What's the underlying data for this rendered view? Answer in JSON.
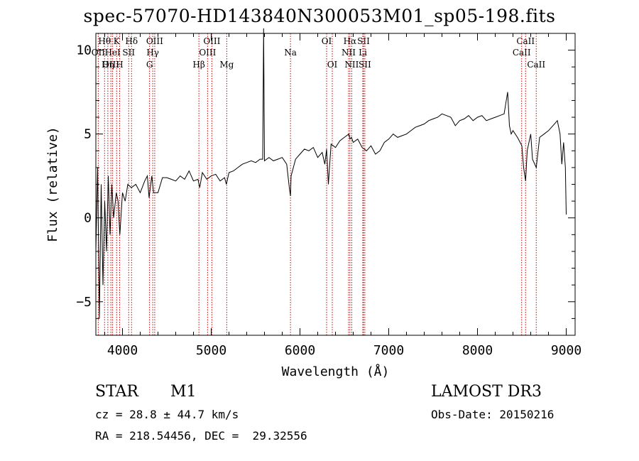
{
  "chart_data": {
    "type": "line",
    "title": "spec-57070-HD143840N300053M01_sp05-198.fits",
    "xlabel": "Wavelength (Å)",
    "ylabel": "Flux (relative)",
    "xlim": [
      3700,
      9100
    ],
    "ylim": [
      -7,
      11
    ],
    "xticks": [
      4000,
      5000,
      6000,
      7000,
      8000,
      9000
    ],
    "xtick_labels": [
      "4000",
      "5000",
      "6000",
      "7000",
      "8000",
      "9000"
    ],
    "yticks": [
      -5,
      0,
      5,
      10
    ],
    "ytick_labels": [
      "−5",
      "0",
      "5",
      "10"
    ],
    "series": [
      {
        "name": "spectrum",
        "x": [
          3700,
          3720,
          3740,
          3760,
          3780,
          3800,
          3820,
          3840,
          3860,
          3880,
          3900,
          3930,
          3950,
          3970,
          4000,
          4030,
          4060,
          4100,
          4150,
          4200,
          4250,
          4280,
          4300,
          4330,
          4350,
          4400,
          4450,
          4500,
          4550,
          4600,
          4650,
          4700,
          4750,
          4800,
          4850,
          4870,
          4900,
          4950,
          5000,
          5050,
          5100,
          5150,
          5170,
          5200,
          5250,
          5300,
          5350,
          5400,
          5450,
          5500,
          5550,
          5580,
          5590,
          5600,
          5650,
          5700,
          5750,
          5800,
          5850,
          5880,
          5893,
          5900,
          5950,
          6000,
          6050,
          6100,
          6150,
          6200,
          6250,
          6280,
          6300,
          6320,
          6350,
          6400,
          6450,
          6500,
          6550,
          6563,
          6580,
          6600,
          6650,
          6700,
          6750,
          6800,
          6850,
          6900,
          6950,
          7000,
          7050,
          7100,
          7150,
          7200,
          7250,
          7300,
          7350,
          7400,
          7450,
          7500,
          7550,
          7600,
          7650,
          7700,
          7750,
          7800,
          7850,
          7900,
          7950,
          8000,
          8050,
          8100,
          8150,
          8200,
          8250,
          8300,
          8340,
          8360,
          8380,
          8400,
          8450,
          8500,
          8520,
          8542,
          8560,
          8600,
          8620,
          8662,
          8700,
          8750,
          8800,
          8850,
          8900,
          8930,
          8950,
          8970,
          8990,
          9000
        ],
        "y": [
          -2,
          3,
          -6,
          2,
          -4,
          1,
          -2,
          2.5,
          -1,
          2,
          0,
          1.5,
          1,
          -1,
          1.5,
          1,
          2,
          1.8,
          2,
          1.5,
          2.2,
          2.5,
          1.2,
          2.5,
          1.5,
          1.5,
          2.4,
          2.4,
          2.3,
          2.2,
          2.5,
          2.3,
          2.8,
          2.2,
          2.3,
          1.8,
          2.7,
          2.3,
          2.5,
          2.6,
          2.2,
          2.4,
          2.0,
          2.7,
          2.8,
          3.0,
          3.2,
          3.3,
          3.4,
          3.3,
          3.5,
          3.5,
          11.3,
          3.4,
          3.6,
          3.4,
          3.5,
          3.6,
          3.2,
          1.8,
          1.3,
          2.5,
          3.5,
          3.8,
          4.1,
          4.0,
          4.2,
          3.6,
          3.9,
          3.2,
          4.1,
          2.0,
          4.4,
          4.2,
          4.6,
          4.8,
          5.0,
          4.7,
          4.8,
          4.5,
          4.7,
          4.2,
          4.0,
          4.3,
          3.8,
          4.0,
          4.5,
          4.7,
          5.0,
          4.8,
          4.9,
          5.0,
          5.2,
          5.4,
          5.5,
          5.6,
          5.8,
          5.9,
          6.0,
          6.2,
          6.1,
          6.0,
          5.5,
          5.8,
          5.9,
          6.1,
          5.8,
          6.0,
          6.1,
          5.8,
          5.9,
          6.0,
          6.1,
          6.2,
          7.5,
          5.5,
          5.0,
          5.2,
          4.8,
          4.3,
          3.0,
          2.2,
          4.0,
          5.0,
          3.5,
          3.0,
          4.8,
          5.0,
          5.2,
          5.5,
          5.8,
          5.0,
          3.2,
          4.5,
          3.0,
          0.2
        ]
      }
    ],
    "lines": [
      {
        "label": "Hθ",
        "x": 3798,
        "row": 1
      },
      {
        "label": "OII",
        "x": 3727,
        "row": 2
      },
      {
        "label": "OIII",
        "x": 3869,
        "row": 3
      },
      {
        "label": "K",
        "x": 3934,
        "row": 1
      },
      {
        "label": "HeI",
        "x": 3889,
        "row": 2
      },
      {
        "label": "Hη",
        "x": 3835,
        "row": 3
      },
      {
        "label": "H",
        "x": 3968,
        "row": 3
      },
      {
        "label": "SII",
        "x": 4070,
        "row": 2
      },
      {
        "label": "Hδ",
        "x": 4102,
        "row": 1
      },
      {
        "label": "OIII",
        "x": 4363,
        "row": 1
      },
      {
        "label": "Hγ",
        "x": 4341,
        "row": 2
      },
      {
        "label": "G",
        "x": 4305,
        "row": 3
      },
      {
        "label": "OIII",
        "x": 5007,
        "row": 1
      },
      {
        "label": "OIII",
        "x": 4959,
        "row": 2
      },
      {
        "label": "Hβ",
        "x": 4861,
        "row": 3
      },
      {
        "label": "Mg",
        "x": 5175,
        "row": 3
      },
      {
        "label": "Na",
        "x": 5893,
        "row": 2
      },
      {
        "label": "OI",
        "x": 6300,
        "row": 1
      },
      {
        "label": "OI",
        "x": 6364,
        "row": 3
      },
      {
        "label": "Hα",
        "x": 6563,
        "row": 1
      },
      {
        "label": "SII",
        "x": 6716,
        "row": 1
      },
      {
        "label": "NII",
        "x": 6548,
        "row": 2
      },
      {
        "label": "Li",
        "x": 6708,
        "row": 2
      },
      {
        "label": "NII",
        "x": 6583,
        "row": 3
      },
      {
        "label": "SII",
        "x": 6731,
        "row": 3
      },
      {
        "label": "CaII",
        "x": 8542,
        "row": 1
      },
      {
        "label": "CaII",
        "x": 8498,
        "row": 2
      },
      {
        "label": "CaII",
        "x": 8662,
        "row": 3
      }
    ],
    "line_color": "#cc0000"
  },
  "info": {
    "obj_class": "STAR",
    "subclass": "M1",
    "survey": "LAMOST DR3",
    "cz": "cz = 28.8 ± 44.7 km/s",
    "obsdate": "Obs-Date: 20150216",
    "radec": "RA = 218.54456, DEC =  29.32556"
  }
}
